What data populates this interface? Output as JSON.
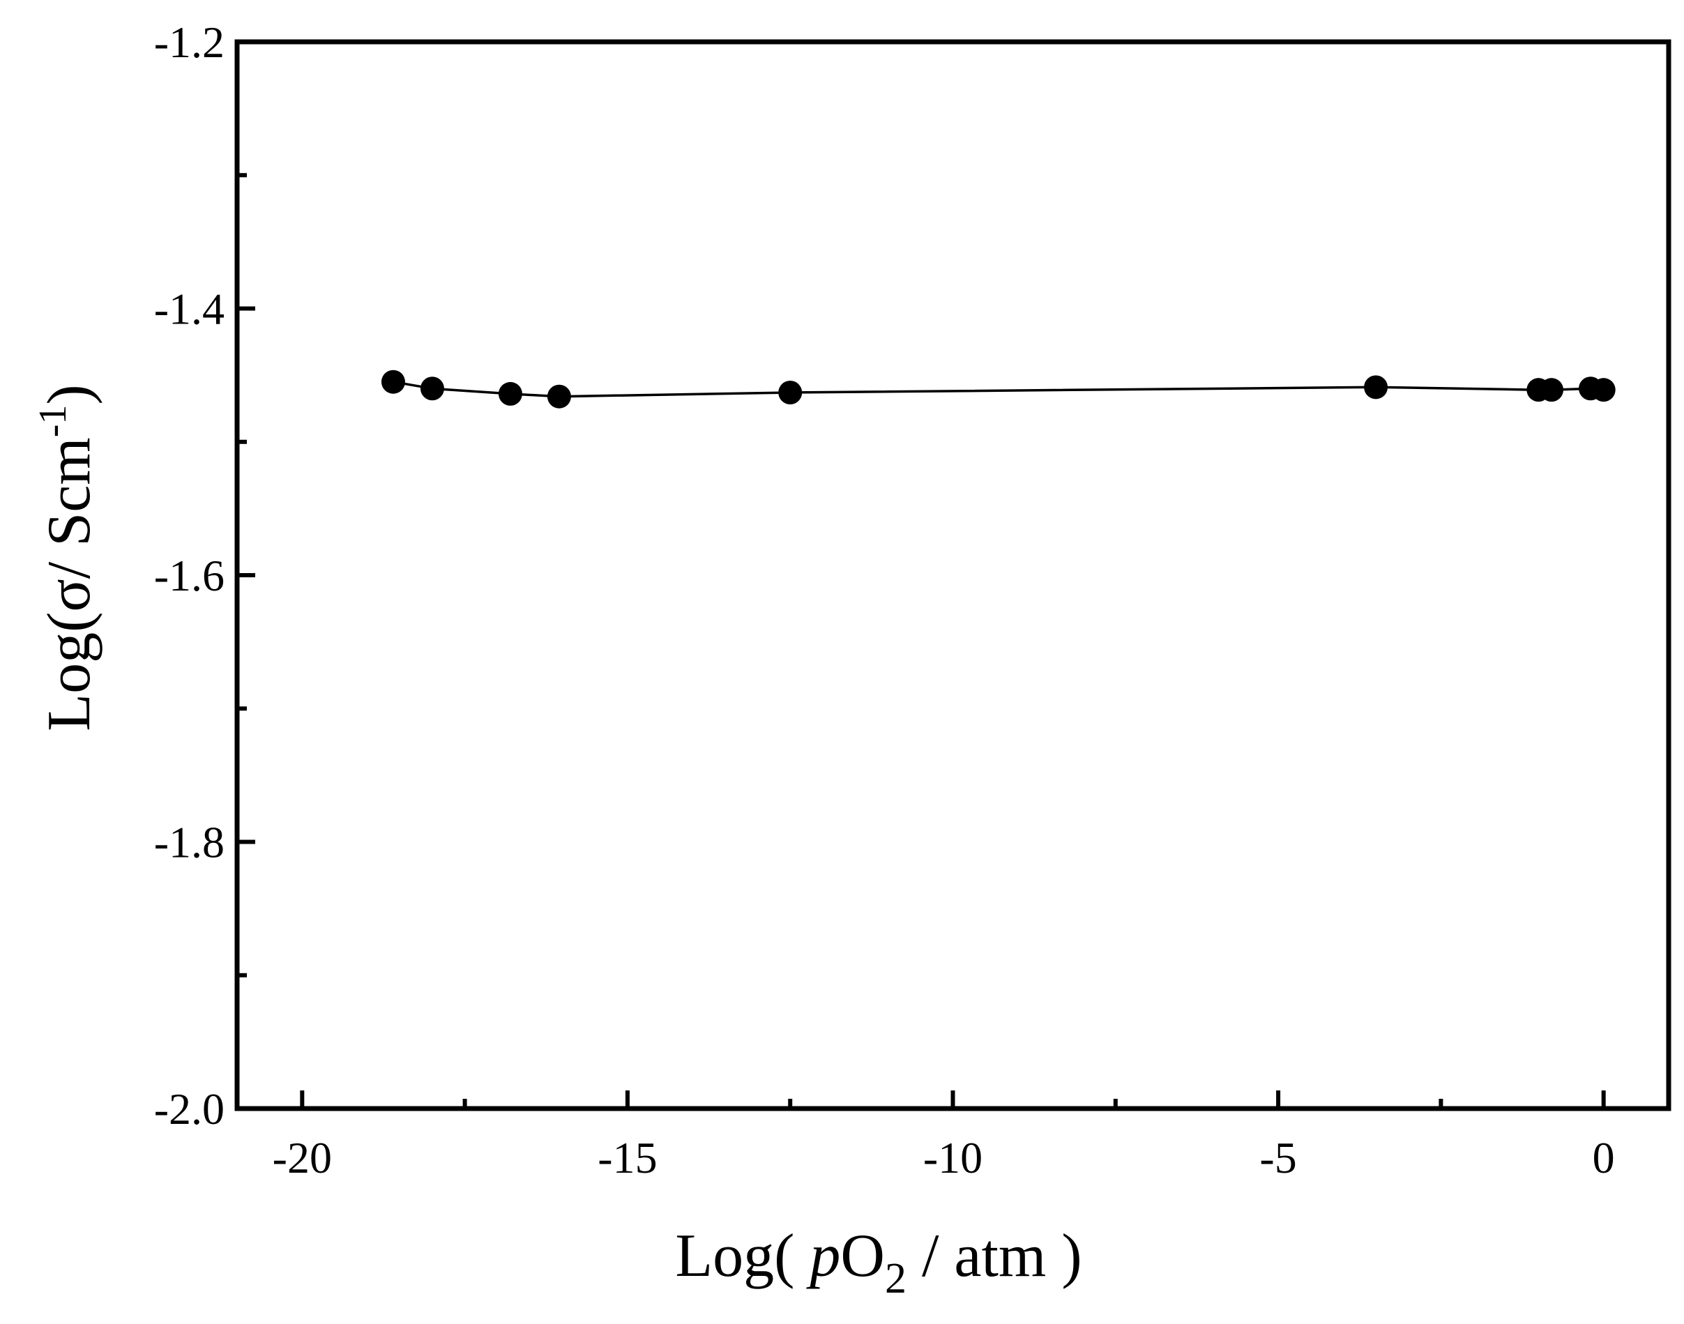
{
  "chart_data": {
    "type": "line",
    "title": "",
    "xlabel": {
      "prefix": "Log( ",
      "italic": "p",
      "main": "O",
      "subscript": "2",
      "suffix": " / atm )"
    },
    "ylabel": {
      "main": "Log(σ/ Scm",
      "superscript": "-1",
      "suffix": ")"
    },
    "xlim": [
      -21,
      1
    ],
    "ylim": [
      -2.0,
      -1.2
    ],
    "x_ticks": [
      -20,
      -15,
      -10,
      -5,
      0
    ],
    "x_tick_labels": [
      "-20",
      "-15",
      "-10",
      "-5",
      "0"
    ],
    "x_minor_ticks": [
      -17.5,
      -12.5,
      -7.5,
      -2.5
    ],
    "y_ticks": [
      -2.0,
      -1.8,
      -1.6,
      -1.4,
      -1.2
    ],
    "y_tick_labels": [
      "-2.0",
      "-1.8",
      "-1.6",
      "-1.4",
      "-1.2"
    ],
    "y_minor_ticks": [
      -1.9,
      -1.7,
      -1.5,
      -1.3
    ],
    "grid": false,
    "legend": "none",
    "series": [
      {
        "color": "#000000",
        "marker": "filled-circle",
        "points": [
          {
            "x": -18.6,
            "y": -1.455
          },
          {
            "x": -18.0,
            "y": -1.46
          },
          {
            "x": -16.8,
            "y": -1.464
          },
          {
            "x": -16.05,
            "y": -1.466
          },
          {
            "x": -12.5,
            "y": -1.463
          },
          {
            "x": -3.5,
            "y": -1.459
          },
          {
            "x": -1.0,
            "y": -1.461
          },
          {
            "x": -0.8,
            "y": -1.461
          },
          {
            "x": -0.2,
            "y": -1.46
          },
          {
            "x": 0.0,
            "y": -1.461
          }
        ]
      }
    ]
  }
}
